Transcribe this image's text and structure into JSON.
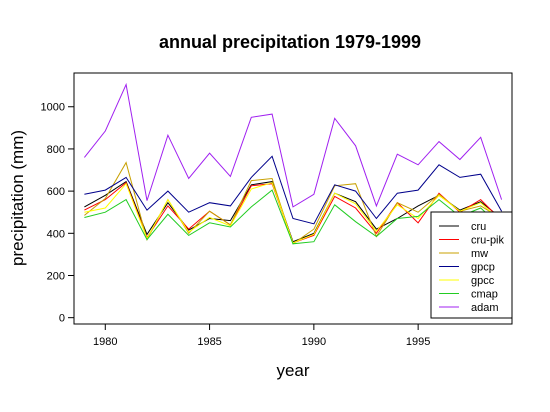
{
  "chart_data": {
    "type": "line",
    "title": "annual precipitation 1979-1999",
    "xlabel": "year",
    "ylabel": "precipitation (mm)",
    "xlim": [
      1978.5,
      1999.5
    ],
    "ylim": [
      -30,
      1160
    ],
    "xticks": [
      1980,
      1985,
      1990,
      1995
    ],
    "yticks": [
      0,
      200,
      400,
      600,
      800,
      1000
    ],
    "grid": false,
    "legend_position": "bottom-right",
    "x": [
      1979,
      1980,
      1981,
      1982,
      1983,
      1984,
      1985,
      1986,
      1987,
      1988,
      1989,
      1990,
      1991,
      1992,
      1993,
      1994,
      1995,
      1996,
      1997,
      1998,
      1999
    ],
    "series": [
      {
        "name": "cru",
        "color": "#000000",
        "values": [
          525,
          580,
          645,
          395,
          545,
          415,
          470,
          460,
          630,
          645,
          360,
          400,
          590,
          550,
          420,
          470,
          530,
          580,
          510,
          550,
          470
        ]
      },
      {
        "name": "cru-pik",
        "color": "#ff0000",
        "values": [
          510,
          560,
          640,
          380,
          530,
          420,
          505,
          440,
          625,
          635,
          355,
          390,
          575,
          520,
          400,
          545,
          450,
          590,
          500,
          560,
          460
        ]
      },
      {
        "name": "mw",
        "color": "#c8a000",
        "values": [
          485,
          565,
          735,
          370,
          560,
          400,
          505,
          440,
          650,
          660,
          350,
          420,
          625,
          635,
          385,
          545,
          500,
          585,
          505,
          530,
          470
        ]
      },
      {
        "name": "gpcp",
        "color": "#00008b",
        "values": [
          585,
          605,
          665,
          510,
          600,
          500,
          545,
          530,
          665,
          765,
          470,
          445,
          630,
          600,
          470,
          590,
          605,
          725,
          665,
          680,
          505
        ]
      },
      {
        "name": "gpcc",
        "color": "#ffff00",
        "values": [
          500,
          520,
          635,
          375,
          560,
          405,
          475,
          435,
          610,
          640,
          355,
          395,
          590,
          540,
          410,
          535,
          470,
          580,
          505,
          545,
          455
        ]
      },
      {
        "name": "cmap",
        "color": "#22cc22",
        "values": [
          475,
          500,
          560,
          370,
          490,
          390,
          450,
          430,
          525,
          605,
          350,
          360,
          535,
          455,
          385,
          470,
          480,
          560,
          480,
          520,
          430
        ]
      },
      {
        "name": "adam",
        "color": "#a020f0",
        "values": [
          760,
          885,
          1105,
          555,
          865,
          660,
          780,
          670,
          950,
          965,
          525,
          585,
          945,
          815,
          530,
          775,
          725,
          835,
          750,
          855,
          560
        ]
      }
    ]
  }
}
